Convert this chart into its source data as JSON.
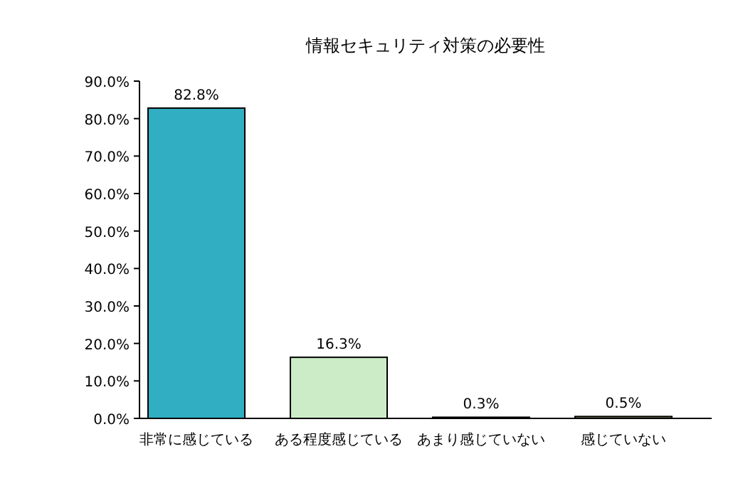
{
  "chart_data": {
    "type": "bar",
    "title": "情報セキュリティ対策の必要性",
    "categories": [
      "非常に感じている",
      "ある程度感じている",
      "あまり感じていない",
      "感じていない"
    ],
    "values": [
      82.8,
      16.3,
      0.3,
      0.5
    ],
    "colors": [
      "#31aec1",
      "#ccecc8",
      "#4a6a5a",
      "#8a9a5b"
    ],
    "value_labels": [
      "82.8%",
      "16.3%",
      "0.3%",
      "0.5%"
    ],
    "ylim": [
      0,
      90
    ],
    "yticks": [
      {
        "value": 0,
        "label": "0.0%"
      },
      {
        "value": 10,
        "label": "10.0%"
      },
      {
        "value": 20,
        "label": "20.0%"
      },
      {
        "value": 30,
        "label": "30.0%"
      },
      {
        "value": 40,
        "label": "40.0%"
      },
      {
        "value": 50,
        "label": "50.0%"
      },
      {
        "value": 60,
        "label": "60.0%"
      },
      {
        "value": 70,
        "label": "70.0%"
      },
      {
        "value": 80,
        "label": "80.0%"
      },
      {
        "value": 90,
        "label": "90.0%"
      }
    ]
  }
}
